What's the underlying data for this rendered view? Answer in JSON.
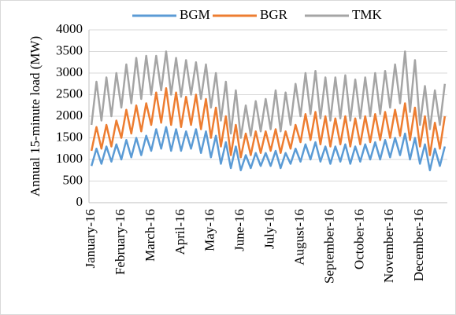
{
  "chart_data": {
    "type": "line",
    "y_label": "Annual 15-minute load (MW)",
    "categories": [
      "January-16",
      null,
      null,
      null,
      null,
      null,
      "February-16",
      null,
      null,
      null,
      null,
      null,
      "March-16",
      null,
      null,
      null,
      null,
      null,
      "April-16",
      null,
      null,
      null,
      null,
      null,
      "May-16",
      null,
      null,
      null,
      null,
      null,
      "June-16",
      null,
      null,
      null,
      null,
      null,
      "July-16",
      null,
      null,
      null,
      null,
      null,
      "August-16",
      null,
      null,
      null,
      null,
      null,
      "September-16",
      null,
      null,
      null,
      null,
      null,
      "October-16",
      null,
      null,
      null,
      null,
      null,
      "November-16",
      null,
      null,
      null,
      null,
      null,
      "December-16",
      null,
      null,
      null,
      null,
      null
    ],
    "series": [
      {
        "name": "BGM",
        "color": "#5b9bd5",
        "values": [
          850,
          1250,
          900,
          1300,
          950,
          1350,
          1000,
          1450,
          1050,
          1500,
          1100,
          1550,
          1200,
          1700,
          1250,
          1750,
          1200,
          1700,
          1200,
          1650,
          1250,
          1700,
          1150,
          1650,
          1050,
          1550,
          900,
          1400,
          800,
          1300,
          750,
          1100,
          800,
          1150,
          850,
          1150,
          850,
          1200,
          800,
          1150,
          900,
          1250,
          950,
          1350,
          1000,
          1400,
          950,
          1300,
          900,
          1300,
          950,
          1350,
          900,
          1300,
          950,
          1350,
          1000,
          1400,
          1000,
          1450,
          1050,
          1500,
          1100,
          1600,
          1000,
          1500,
          900,
          1350,
          750,
          1250,
          850,
          1300
        ]
      },
      {
        "name": "BGR",
        "color": "#ed7d31",
        "values": [
          1200,
          1750,
          1250,
          1800,
          1300,
          1900,
          1500,
          2150,
          1600,
          2250,
          1650,
          2300,
          1800,
          2550,
          1850,
          2650,
          1800,
          2550,
          1750,
          2450,
          1800,
          2500,
          1700,
          2400,
          1500,
          2200,
          1300,
          2000,
          1100,
          1800,
          1050,
          1600,
          1100,
          1650,
          1150,
          1650,
          1200,
          1700,
          1150,
          1650,
          1250,
          1800,
          1400,
          2050,
          1450,
          2100,
          1350,
          2000,
          1300,
          1950,
          1350,
          2000,
          1300,
          1950,
          1350,
          2000,
          1400,
          2050,
          1450,
          2100,
          1500,
          2150,
          1550,
          2300,
          1450,
          2200,
          1300,
          2000,
          1100,
          1850,
          1250,
          2000
        ]
      },
      {
        "name": "TMK",
        "color": "#a5a5a5",
        "values": [
          1800,
          2800,
          1900,
          2900,
          2000,
          3000,
          2200,
          3200,
          2300,
          3350,
          2400,
          3400,
          2500,
          3400,
          2600,
          3500,
          2500,
          3350,
          2450,
          3300,
          2500,
          3250,
          2400,
          3200,
          2200,
          3000,
          1900,
          2800,
          1600,
          2600,
          1500,
          2250,
          1550,
          2350,
          1650,
          2400,
          1700,
          2600,
          1650,
          2550,
          1800,
          2750,
          2000,
          3000,
          2050,
          3050,
          1950,
          2900,
          1900,
          2900,
          1950,
          2950,
          1900,
          2850,
          1950,
          2900,
          2000,
          3000,
          2050,
          3050,
          2200,
          3200,
          2300,
          3500,
          2100,
          3300,
          1800,
          2700,
          1700,
          2600,
          1800,
          2750
        ]
      }
    ],
    "ylim": [
      0,
      4000
    ],
    "yticks": [
      0,
      500,
      1000,
      1500,
      2000,
      2500,
      3000,
      3500,
      4000
    ],
    "grid": true
  }
}
